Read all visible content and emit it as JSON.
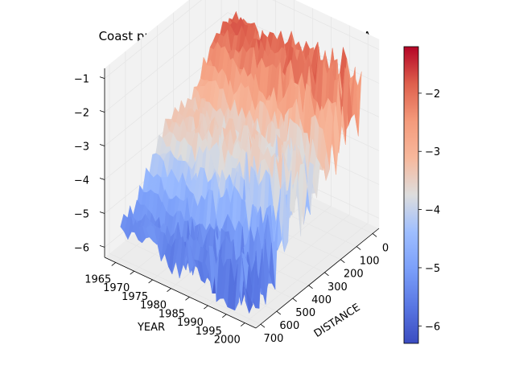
{
  "chart_data": {
    "type": "surface3d",
    "title": "Coast profile evolution prediction with ARIMA",
    "xlabel": "YEAR",
    "ylabel": "DISTANCE",
    "zlabel": "",
    "colormap": "coolwarm",
    "x_ticks": [
      "1965",
      "1970",
      "1975",
      "1980",
      "1985",
      "1990",
      "1995",
      "2000"
    ],
    "y_ticks": [
      "0",
      "100",
      "200",
      "300",
      "400",
      "500",
      "600",
      "700"
    ],
    "z_ticks": [
      "−1",
      "−2",
      "−3",
      "−4",
      "−5",
      "−6"
    ],
    "colorbar_ticks": [
      "−2",
      "−3",
      "−4",
      "−5",
      "−6"
    ],
    "xlim": [
      1962,
      2003
    ],
    "ylim": [
      -40,
      730
    ],
    "zlim": [
      -6.3,
      -0.7
    ],
    "colorbar_range": [
      -6.3,
      -1.2
    ],
    "grid": true,
    "colors": {
      "cmap_low": "#3b4cc0",
      "cmap_mid": "#dddddd",
      "cmap_high": "#b40426",
      "pane": "#f2f2f2",
      "grid": "#e6e6e6"
    }
  }
}
